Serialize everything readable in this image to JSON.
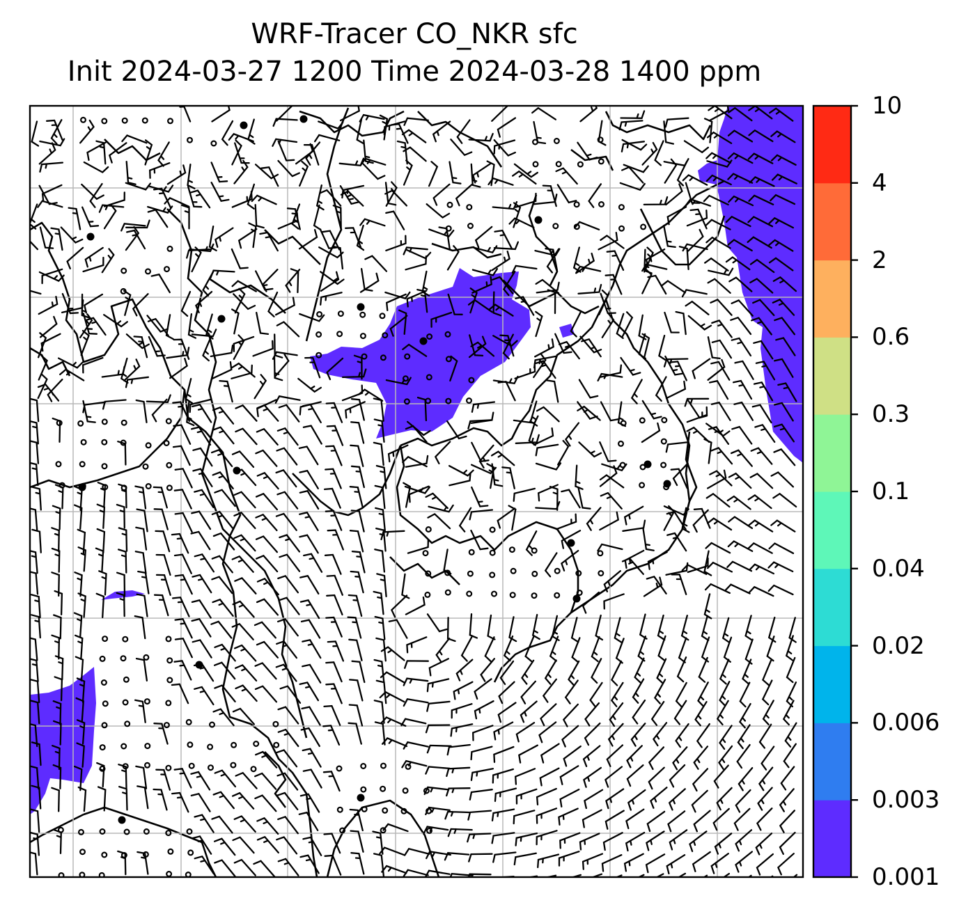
{
  "title": {
    "line1": "WRF-Tracer CO_NKR sfc",
    "line2": "Init 2024-03-27 1200 Time 2024-03-28 1400 ppm"
  },
  "colorbar": {
    "levels": [
      "0.001",
      "0.003",
      "0.006",
      "0.02",
      "0.04",
      "0.1",
      "0.3",
      "0.6",
      "2",
      "4",
      "10"
    ],
    "colors": [
      "#5e2cff",
      "#2f7df0",
      "#00b4eb",
      "#2ddcd4",
      "#5ef7b8",
      "#8ff596",
      "#cfe085",
      "#feb05e",
      "#ff6b38",
      "#ff2a14"
    ]
  },
  "map": {
    "plume_color": "#5e2cff",
    "wind_barbs": true,
    "gridlines": true,
    "coastlines": true
  }
}
